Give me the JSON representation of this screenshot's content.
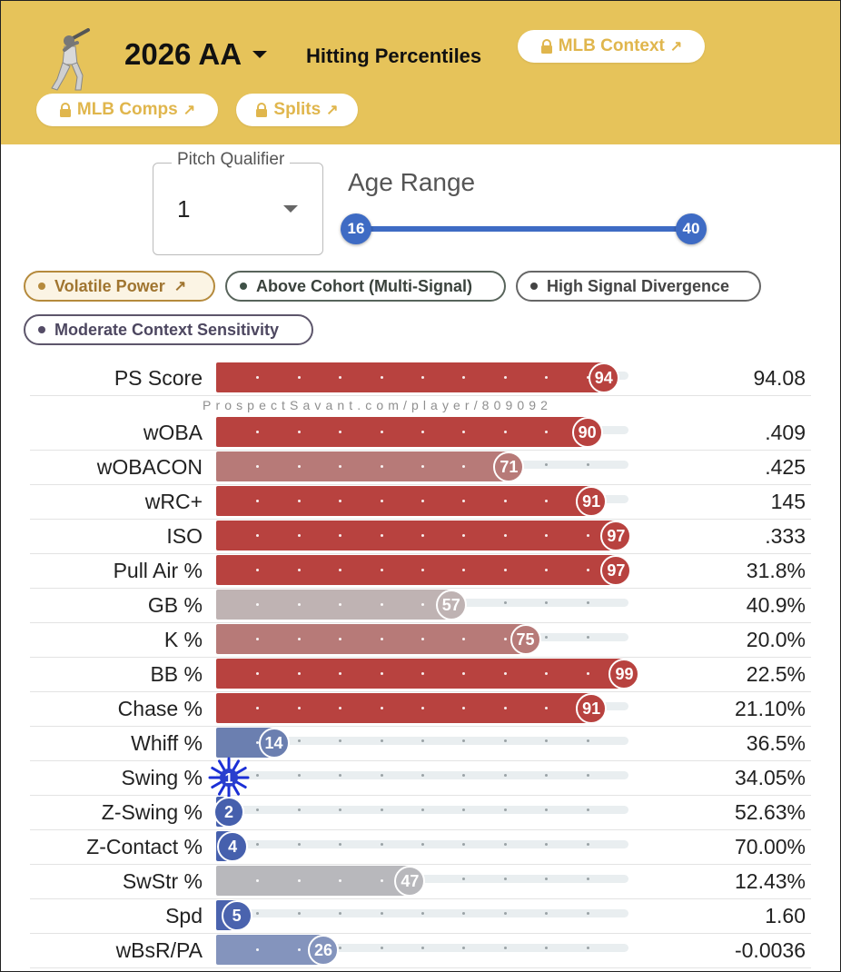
{
  "header": {
    "season": "2026 AA",
    "subtitle": "Hitting Percentiles",
    "buttons": [
      {
        "label": "MLB Context",
        "arrow": "↗"
      },
      {
        "label": "MLB Comps",
        "arrow": "↗"
      },
      {
        "label": "Splits",
        "arrow": "↗"
      }
    ]
  },
  "filters": {
    "pitch_qualifier": {
      "label": "Pitch Qualifier",
      "value": "1"
    },
    "age_range": {
      "label": "Age Range",
      "min": "16",
      "max": "40"
    }
  },
  "tags": [
    {
      "label": "Volatile Power",
      "arrow": "↗"
    },
    {
      "label": "Above Cohort (Multi-Signal)"
    },
    {
      "label": "High Signal Divergence"
    },
    {
      "label": "Moderate Context Sensitivity"
    }
  ],
  "watermark": "ProspectSavant.com/player/809092",
  "metrics": [
    {
      "label": "PS Score",
      "percentile": "94",
      "value": "94.08",
      "color": "#b8423f"
    },
    {
      "label": "wOBA",
      "percentile": "90",
      "value": ".409",
      "color": "#b8423f"
    },
    {
      "label": "wOBACON",
      "percentile": "71",
      "value": ".425",
      "color": "#b77a78"
    },
    {
      "label": "wRC+",
      "percentile": "91",
      "value": "145",
      "color": "#b8423f"
    },
    {
      "label": "ISO",
      "percentile": "97",
      "value": ".333",
      "color": "#b8423f"
    },
    {
      "label": "Pull Air %",
      "percentile": "97",
      "value": "31.8%",
      "color": "#b8423f"
    },
    {
      "label": "GB %",
      "percentile": "57",
      "value": "40.9%",
      "color": "#bfb3b3"
    },
    {
      "label": "K %",
      "percentile": "75",
      "value": "20.0%",
      "color": "#b77a78"
    },
    {
      "label": "BB %",
      "percentile": "99",
      "value": "22.5%",
      "color": "#b8423f"
    },
    {
      "label": "Chase %",
      "percentile": "91",
      "value": "21.10%",
      "color": "#b8423f"
    },
    {
      "label": "Whiff %",
      "percentile": "14",
      "value": "36.5%",
      "color": "#6b7fb0"
    },
    {
      "label": "Swing %",
      "percentile": "1",
      "value": "34.05%",
      "color": "#3e56a6",
      "special": true
    },
    {
      "label": "Z-Swing %",
      "percentile": "2",
      "value": "52.63%",
      "color": "#4660ad"
    },
    {
      "label": "Z-Contact %",
      "percentile": "4",
      "value": "70.00%",
      "color": "#4660ad"
    },
    {
      "label": "SwStr %",
      "percentile": "47",
      "value": "12.43%",
      "color": "#b8b8bc"
    },
    {
      "label": "Spd",
      "percentile": "5",
      "value": "1.60",
      "color": "#4a63ae"
    },
    {
      "label": "wBsR/PA",
      "percentile": "26",
      "value": "-0.0036",
      "color": "#8494bd"
    }
  ]
}
